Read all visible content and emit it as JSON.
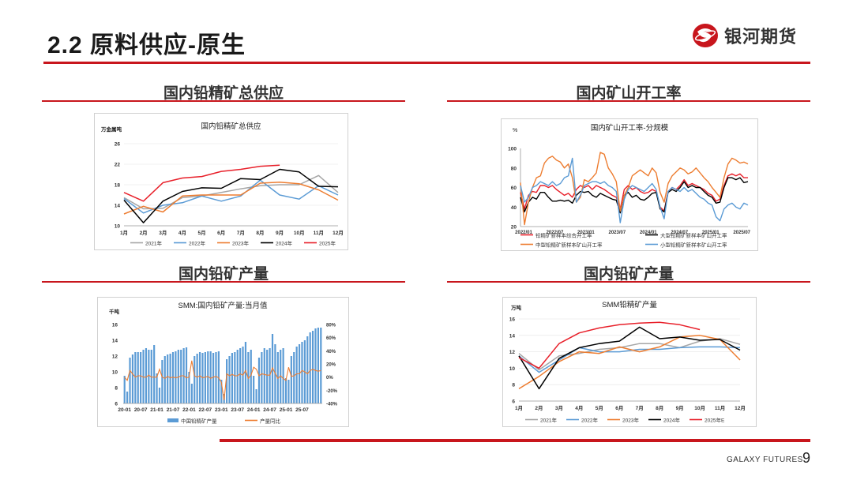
{
  "page": {
    "title": "2.2  原料供应-原生",
    "logo_text": "银河期货",
    "footer": "GALAXY FUTURES",
    "page_number": "9"
  },
  "sections": [
    {
      "title": "国内铅精矿总供应"
    },
    {
      "title": "国内矿山开工率"
    },
    {
      "title": "国内铅矿产量"
    },
    {
      "title": "国内铅矿产量"
    }
  ],
  "colors": {
    "accent": "#c8161d"
  },
  "chart_data": [
    {
      "type": "line",
      "title": "国内铅精矿总供应",
      "unit": "万金属吨",
      "categories": [
        "1月",
        "2月",
        "3月",
        "4月",
        "5月",
        "6月",
        "7月",
        "8月",
        "9月",
        "10月",
        "11月",
        "12月"
      ],
      "ylim": [
        10,
        26
      ],
      "yticks": [
        10,
        14,
        18,
        22,
        26
      ],
      "series": [
        {
          "name": "2021年",
          "color": "#a6a6a6",
          "values": [
            15.5,
            13.3,
            13.4,
            15.5,
            15.8,
            16.5,
            17.2,
            17.8,
            18.0,
            18.0,
            19.8,
            16.5
          ]
        },
        {
          "name": "2022年",
          "color": "#5b9bd5",
          "values": [
            15.3,
            12.5,
            14.0,
            14.5,
            15.8,
            14.8,
            15.8,
            18.9,
            16.0,
            15.2,
            17.8,
            16.0
          ]
        },
        {
          "name": "2023年",
          "color": "#ed7d31",
          "values": [
            12.3,
            13.8,
            12.7,
            15.8,
            16.0,
            16.0,
            16.0,
            18.3,
            18.5,
            18.2,
            17.0,
            15.0
          ]
        },
        {
          "name": "2024年",
          "color": "#000000",
          "values": [
            15.0,
            10.6,
            14.8,
            16.7,
            17.4,
            17.3,
            19.2,
            19.0,
            21.0,
            20.5,
            17.7,
            17.6
          ]
        },
        {
          "name": "2025年",
          "color": "#e8202a",
          "values": [
            16.5,
            14.8,
            18.4,
            19.3,
            19.6,
            20.6,
            21.0,
            21.6,
            21.8,
            null,
            null,
            null
          ]
        }
      ]
    },
    {
      "type": "line",
      "title": "国内矿山开工率-分规模",
      "unit": "%",
      "xticks": [
        "2022/01",
        "2022/07",
        "2023/01",
        "2023/07",
        "2024/01",
        "2024/07",
        "2025/01",
        "2025/07"
      ],
      "ylim": [
        20,
        100
      ],
      "yticks": [
        20,
        40,
        60,
        80,
        100
      ],
      "series": [
        {
          "name": "铅精矿新样本综合开工率",
          "color": "#e8202a",
          "values": [
            55,
            38,
            52,
            56,
            55,
            62,
            62,
            60,
            62,
            58,
            55,
            52,
            54,
            50,
            58,
            62,
            60,
            62,
            58,
            62,
            60,
            58,
            55,
            52,
            50,
            38,
            58,
            62,
            58,
            60,
            56,
            54,
            55,
            58,
            56,
            40,
            36,
            56,
            60,
            58,
            62,
            68,
            62,
            64,
            62,
            60,
            58,
            54,
            52,
            46,
            48,
            62,
            72,
            74,
            72,
            74,
            70,
            70
          ]
        },
        {
          "name": "大型铅精矿新样本矿山开工率",
          "color": "#000000",
          "values": [
            50,
            35,
            45,
            50,
            48,
            55,
            55,
            50,
            46,
            46,
            47,
            46,
            47,
            44,
            52,
            56,
            55,
            56,
            52,
            50,
            54,
            52,
            50,
            48,
            47,
            34,
            52,
            55,
            50,
            52,
            48,
            47,
            50,
            54,
            55,
            38,
            35,
            55,
            58,
            56,
            60,
            66,
            60,
            62,
            60,
            60,
            56,
            52,
            50,
            44,
            45,
            60,
            70,
            70,
            68,
            70,
            65,
            66
          ]
        },
        {
          "name": "中型铅精矿新样本矿山开工率",
          "color": "#ed7d31",
          "values": [
            65,
            22,
            45,
            60,
            70,
            72,
            85,
            90,
            92,
            88,
            86,
            80,
            84,
            70,
            45,
            50,
            68,
            66,
            70,
            75,
            96,
            94,
            80,
            74,
            66,
            36,
            52,
            60,
            72,
            75,
            78,
            75,
            72,
            80,
            75,
            55,
            45,
            64,
            72,
            76,
            80,
            78,
            74,
            76,
            80,
            75,
            70,
            66,
            60,
            55,
            50,
            70,
            84,
            90,
            88,
            85,
            86,
            84
          ]
        },
        {
          "name": "小型铅精矿新样本矿山开工率",
          "color": "#5b9bd5",
          "values": [
            62,
            45,
            50,
            60,
            62,
            66,
            64,
            62,
            66,
            62,
            64,
            70,
            72,
            90,
            45,
            52,
            62,
            64,
            66,
            66,
            64,
            66,
            62,
            60,
            56,
            24,
            48,
            58,
            62,
            60,
            58,
            56,
            60,
            64,
            58,
            40,
            28,
            56,
            60,
            58,
            56,
            60,
            56,
            58,
            54,
            50,
            48,
            44,
            42,
            30,
            26,
            38,
            42,
            44,
            40,
            38,
            44,
            42
          ]
        }
      ]
    },
    {
      "type": "bar+line",
      "title": "SMM:国内铅矿产量:当月值",
      "unit": "千吨",
      "xticks": [
        "20-01",
        "20-07",
        "21-01",
        "21-07",
        "22-01",
        "22-07",
        "23-01",
        "23-07",
        "24-01",
        "24-07",
        "25-01",
        "25-07"
      ],
      "ylim": [
        6,
        16
      ],
      "yticks": [
        6,
        8,
        10,
        12,
        14,
        16
      ],
      "y2lim": [
        -40,
        80
      ],
      "y2ticks": [
        "-40%",
        "-20%",
        "0%",
        "20%",
        "40%",
        "60%",
        "80%"
      ],
      "series": [
        {
          "name": "中国铅精矿产量",
          "color": "#5b9bd5",
          "values": [
            9.5,
            7.5,
            11.8,
            12.2,
            12.5,
            12.5,
            12.5,
            12.8,
            13.0,
            12.8,
            12.8,
            13.4,
            9.8,
            8.0,
            11.5,
            12.0,
            12.2,
            12.3,
            12.5,
            12.6,
            12.8,
            12.8,
            13.0,
            13.1,
            10.0,
            8.5,
            12.0,
            12.3,
            12.5,
            12.4,
            12.5,
            12.6,
            12.6,
            12.4,
            12.5,
            12.6,
            9.0,
            7.2,
            11.6,
            12.0,
            12.4,
            12.5,
            12.8,
            13.0,
            13.2,
            13.8,
            12.5,
            12.8,
            9.5,
            7.8,
            11.8,
            12.5,
            13.0,
            12.8,
            13.0,
            14.8,
            13.5,
            12.5,
            12.8,
            13.0,
            9.2,
            9.0,
            12.0,
            12.5,
            13.2,
            13.5,
            13.8,
            14.0,
            14.5,
            15.0,
            15.2,
            15.5,
            15.6,
            15.6
          ]
        },
        {
          "name": "产量同比",
          "color": "#ed7d31",
          "values": [
            0,
            -5,
            10,
            5,
            0,
            2,
            2,
            0,
            0,
            3,
            0,
            0,
            0,
            12,
            0,
            -2,
            1,
            -1,
            0,
            -1,
            0,
            2,
            2,
            -1,
            0,
            25,
            2,
            0,
            2,
            -1,
            0,
            1,
            -2,
            0,
            1,
            -1,
            -8,
            -35,
            5,
            2,
            4,
            2,
            2,
            5,
            3,
            10,
            -2,
            3,
            15,
            12,
            2,
            5,
            4,
            3,
            3,
            14,
            6,
            -2,
            2,
            -2,
            -5,
            15,
            1,
            2,
            5,
            5,
            10,
            8,
            5,
            10,
            12,
            10,
            9,
            10
          ]
        }
      ]
    },
    {
      "type": "line",
      "title": "SMM铅精矿产量",
      "unit": "万吨",
      "categories": [
        "1月",
        "2月",
        "3月",
        "4月",
        "5月",
        "6月",
        "7月",
        "8月",
        "9月",
        "10月",
        "11月",
        "12月"
      ],
      "ylim": [
        6,
        16
      ],
      "yticks": [
        6,
        8,
        10,
        12,
        14,
        16
      ],
      "series": [
        {
          "name": "2021年",
          "color": "#a6a6a6",
          "values": [
            11.8,
            9.8,
            11.5,
            11.8,
            12.3,
            12.5,
            13.0,
            13.0,
            12.5,
            13.3,
            13.6,
            12.9
          ]
        },
        {
          "name": "2022年",
          "color": "#5b9bd5",
          "values": [
            11.5,
            9.5,
            11.0,
            12.5,
            12.0,
            12.0,
            12.3,
            12.3,
            12.5,
            12.6,
            12.6,
            12.5
          ]
        },
        {
          "name": "2023年",
          "color": "#ed7d31",
          "values": [
            7.5,
            9.0,
            10.8,
            12.0,
            11.8,
            12.6,
            12.0,
            12.6,
            13.8,
            14.0,
            13.5,
            11.0
          ]
        },
        {
          "name": "2024年",
          "color": "#000000",
          "values": [
            11.5,
            7.5,
            11.2,
            12.5,
            13.0,
            13.3,
            15.0,
            13.6,
            13.8,
            13.4,
            13.5,
            12.2
          ]
        },
        {
          "name": "2025年E",
          "color": "#e8202a",
          "values": [
            11.3,
            10.0,
            13.0,
            14.3,
            14.9,
            15.3,
            15.5,
            15.6,
            15.3,
            14.7,
            null,
            null
          ]
        }
      ]
    }
  ]
}
